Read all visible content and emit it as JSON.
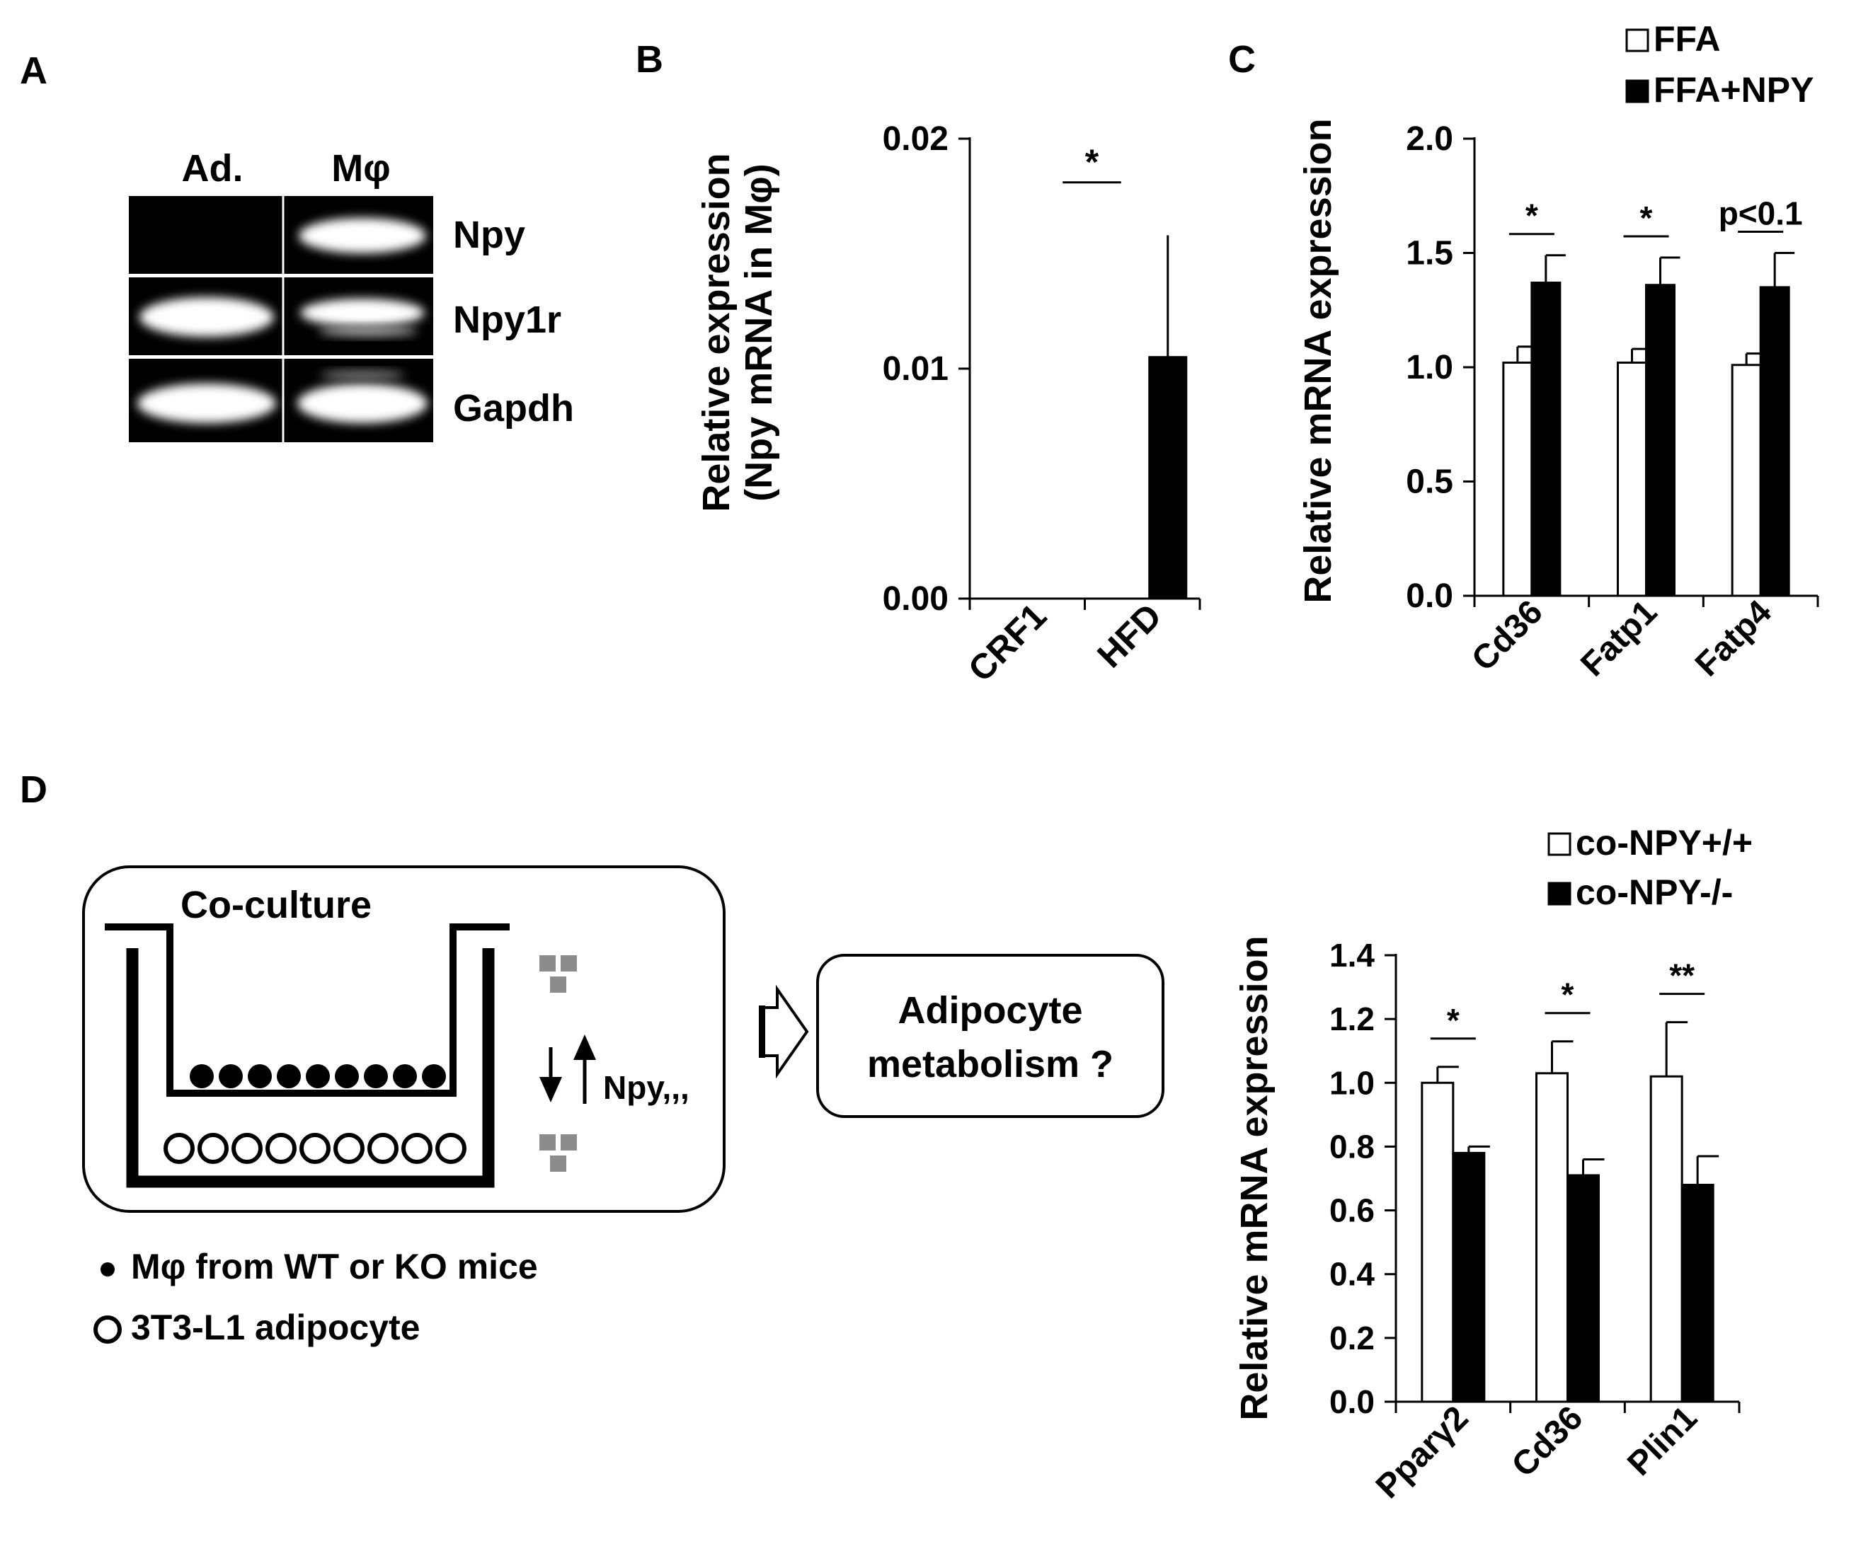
{
  "panels": {
    "a": "A",
    "b": "B",
    "c": "C",
    "d": "D"
  },
  "panel_a": {
    "lanes": [
      "Ad.",
      "Mφ"
    ],
    "bands": [
      "Npy",
      "Npy1r",
      "Gapdh"
    ]
  },
  "panel_d_diagram": {
    "title": "Co-culture",
    "arrow_label": "Npy,,,",
    "box_text_line1": "Adipocyte",
    "box_text_line2": "metabolism ?",
    "legend_filled": "Mφ from WT or KO mice",
    "legend_open": "3T3-L1 adipocyte"
  },
  "chart_data": [
    {
      "id": "B",
      "type": "bar",
      "categories": [
        "CRF1",
        "HFD"
      ],
      "series": [
        {
          "values": [
            0.0,
            0.0105
          ],
          "errors": [
            0.0,
            0.0053
          ],
          "color": "#000000"
        }
      ],
      "ylabel_line1": "Relative expression",
      "ylabel_line2": "(Npy mRNA in Mφ)",
      "ylim": [
        0,
        0.02
      ],
      "yticks": [
        "0.00",
        "0.01",
        "0.02"
      ],
      "annotations": [
        {
          "text": "*",
          "between": [
            "CRF1",
            "HFD"
          ]
        }
      ],
      "grid": false
    },
    {
      "id": "C",
      "type": "bar",
      "categories": [
        "Cd36",
        "Fatp1",
        "Fatp4"
      ],
      "series": [
        {
          "name": "FFA",
          "values": [
            1.02,
            1.02,
            1.01
          ],
          "errors": [
            0.07,
            0.06,
            0.05
          ],
          "color": "#ffffff"
        },
        {
          "name": "FFA+NPY",
          "values": [
            1.37,
            1.36,
            1.35
          ],
          "errors": [
            0.12,
            0.12,
            0.15
          ],
          "color": "#000000"
        }
      ],
      "ylabel": "Relative mRNA expression",
      "ylim": [
        0,
        2.0
      ],
      "yticks": [
        "0.0",
        "0.5",
        "1.0",
        "1.5",
        "2.0"
      ],
      "annotations": [
        "*",
        "*",
        "p<0.1"
      ],
      "legend_position": "top-right",
      "grid": false
    },
    {
      "id": "D",
      "type": "bar",
      "categories": [
        "Pparγ2",
        "Cd36",
        "Plin1"
      ],
      "series": [
        {
          "name": "co-NPY+/+",
          "values": [
            1.0,
            1.03,
            1.02
          ],
          "errors": [
            0.05,
            0.1,
            0.17
          ],
          "color": "#ffffff"
        },
        {
          "name": "co-NPY-/-",
          "values": [
            0.78,
            0.71,
            0.68
          ],
          "errors": [
            0.02,
            0.05,
            0.09
          ],
          "color": "#000000"
        }
      ],
      "ylabel": "Relative mRNA expression",
      "ylim": [
        0,
        1.4
      ],
      "yticks": [
        "0.0",
        "0.2",
        "0.4",
        "0.6",
        "0.8",
        "1.0",
        "1.2",
        "1.4"
      ],
      "annotations": [
        "*",
        "*",
        "**"
      ],
      "legend_position": "top-right",
      "grid": false
    }
  ]
}
